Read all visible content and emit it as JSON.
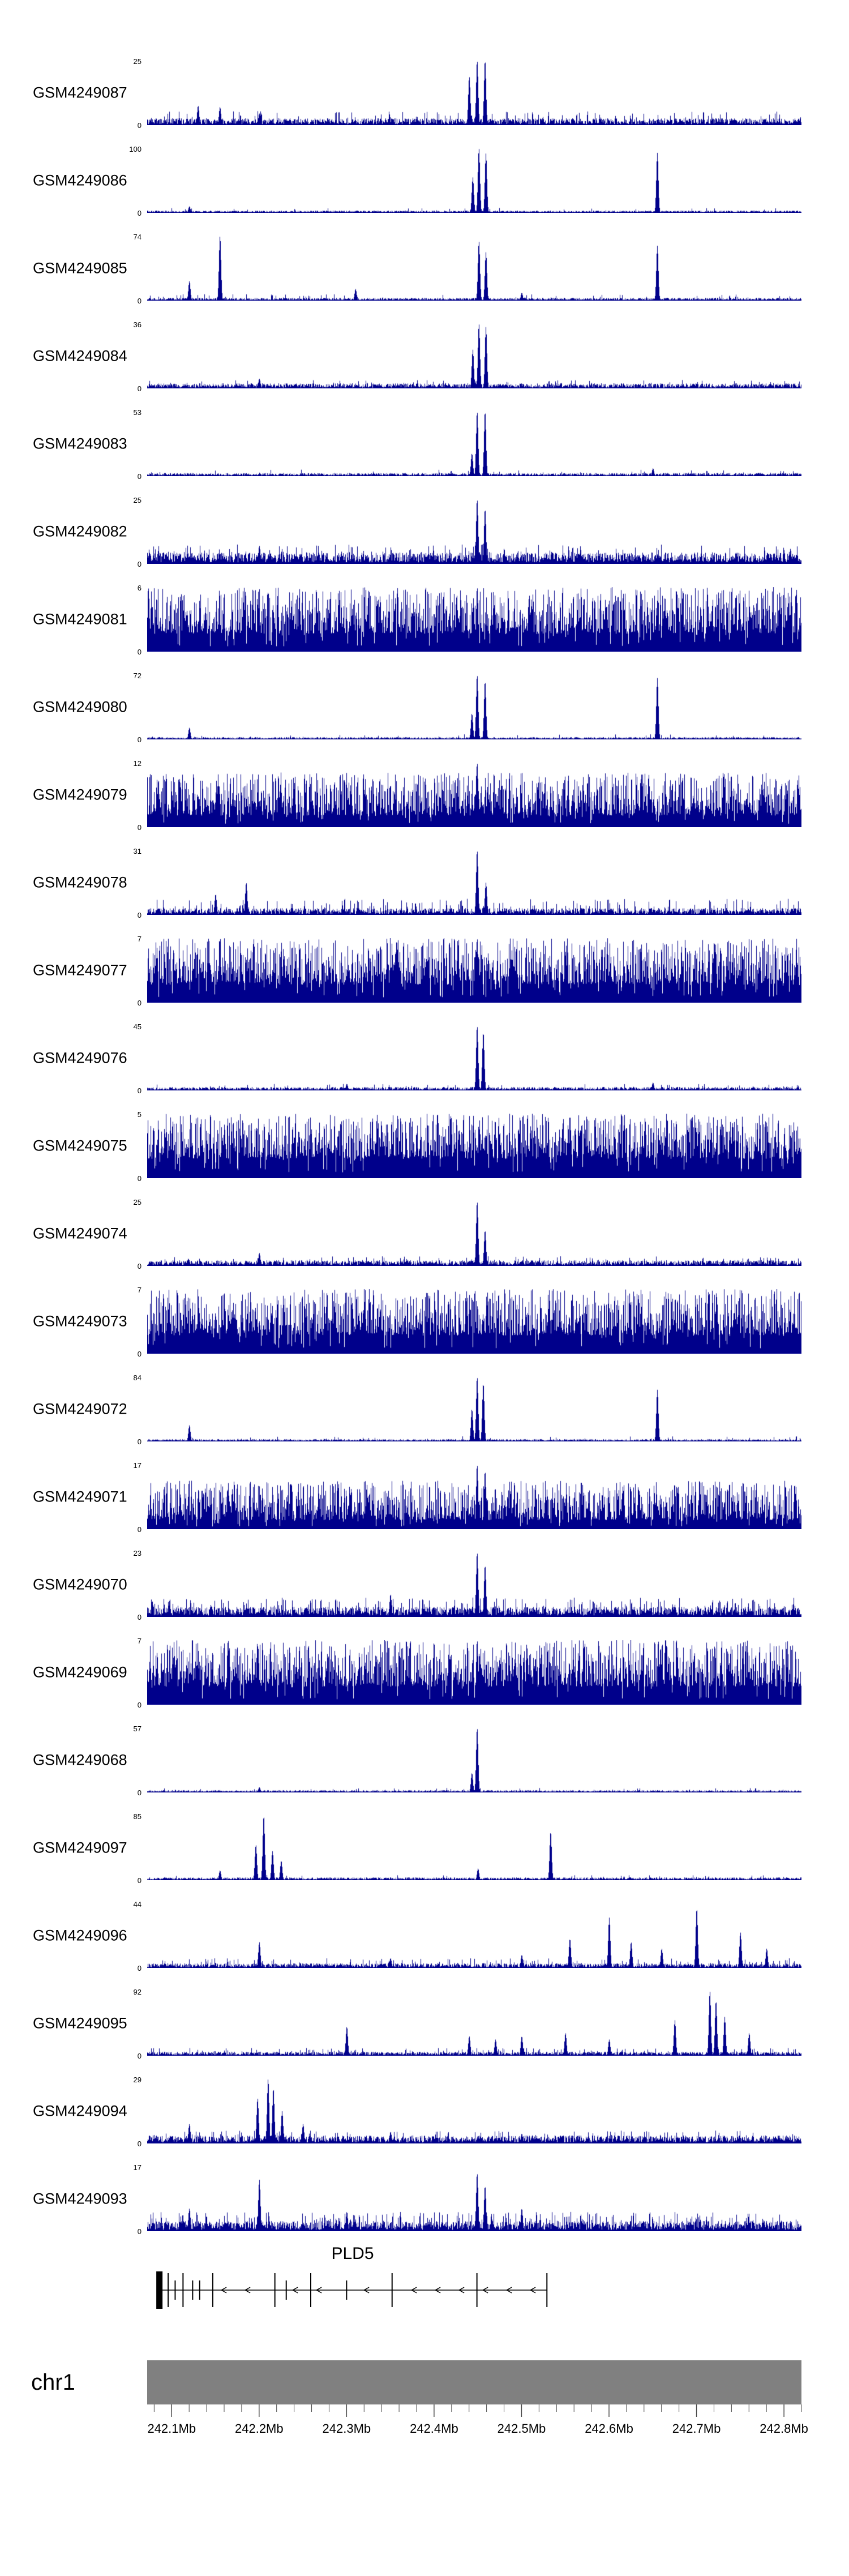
{
  "chart_data": {
    "type": "genome-tracks",
    "region": {
      "chrom": "chr1",
      "start_mb": 242.072,
      "end_mb": 242.82
    },
    "axis": {
      "tick_labels": [
        "242.1Mb",
        "242.2Mb",
        "242.3Mb",
        "242.4Mb",
        "242.5Mb",
        "242.6Mb",
        "242.7Mb",
        "242.8Mb"
      ],
      "tick_positions_mb": [
        242.1,
        242.2,
        242.3,
        242.4,
        242.5,
        242.6,
        242.7,
        242.8
      ],
      "minor_tick_step_mb": 0.02
    },
    "signal_color": "#00008B",
    "y_min_label": "0",
    "tracks": [
      {
        "label": "GSM4249087",
        "ymax": "25",
        "profile": {
          "base": 0.06,
          "spike_p": 0.1,
          "spike_h": 0.22,
          "peaks": [
            [
              242.44,
              0.75
            ],
            [
              242.449,
              1.0
            ],
            [
              242.458,
              1.0
            ],
            [
              242.13,
              0.3
            ],
            [
              242.155,
              0.28
            ],
            [
              242.2,
              0.18
            ]
          ]
        }
      },
      {
        "label": "GSM4249086",
        "ymax": "100",
        "profile": {
          "base": 0.02,
          "spike_p": 0.03,
          "spike_h": 0.08,
          "peaks": [
            [
              242.444,
              0.55
            ],
            [
              242.451,
              1.0
            ],
            [
              242.459,
              0.92
            ],
            [
              242.655,
              0.93
            ],
            [
              242.12,
              0.1
            ]
          ]
        }
      },
      {
        "label": "GSM4249085",
        "ymax": "74",
        "profile": {
          "base": 0.025,
          "spike_p": 0.05,
          "spike_h": 0.1,
          "peaks": [
            [
              242.155,
              1.0
            ],
            [
              242.12,
              0.3
            ],
            [
              242.451,
              0.92
            ],
            [
              242.459,
              0.75
            ],
            [
              242.655,
              0.85
            ],
            [
              242.31,
              0.18
            ],
            [
              242.5,
              0.12
            ]
          ]
        }
      },
      {
        "label": "GSM4249084",
        "ymax": "36",
        "profile": {
          "base": 0.045,
          "spike_p": 0.08,
          "spike_h": 0.13,
          "peaks": [
            [
              242.444,
              0.6
            ],
            [
              242.451,
              1.0
            ],
            [
              242.459,
              0.95
            ],
            [
              242.2,
              0.15
            ]
          ]
        }
      },
      {
        "label": "GSM4249083",
        "ymax": "53",
        "profile": {
          "base": 0.028,
          "spike_p": 0.04,
          "spike_h": 0.1,
          "peaks": [
            [
              242.449,
              1.0
            ],
            [
              242.458,
              1.0
            ],
            [
              242.443,
              0.35
            ],
            [
              242.65,
              0.12
            ]
          ]
        }
      },
      {
        "label": "GSM4249082",
        "ymax": "25",
        "profile": {
          "base": 0.1,
          "spike_p": 0.15,
          "spike_h": 0.3,
          "peaks": [
            [
              242.449,
              1.0
            ],
            [
              242.458,
              0.85
            ],
            [
              242.2,
              0.28
            ]
          ]
        }
      },
      {
        "label": "GSM4249081",
        "ymax": "6",
        "profile": {
          "dense": true,
          "base": 0.28,
          "spike_h": 1.0,
          "peaks": [
            [
              242.449,
              1.0
            ]
          ]
        }
      },
      {
        "label": "GSM4249080",
        "ymax": "72",
        "profile": {
          "base": 0.02,
          "spike_p": 0.04,
          "spike_h": 0.08,
          "peaks": [
            [
              242.449,
              1.0
            ],
            [
              242.458,
              0.9
            ],
            [
              242.443,
              0.4
            ],
            [
              242.655,
              0.95
            ],
            [
              242.12,
              0.18
            ]
          ]
        }
      },
      {
        "label": "GSM4249079",
        "ymax": "12",
        "profile": {
          "dense": true,
          "base": 0.18,
          "spike_h": 0.85,
          "peaks": [
            [
              242.449,
              1.0
            ]
          ]
        }
      },
      {
        "label": "GSM4249078",
        "ymax": "31",
        "profile": {
          "base": 0.06,
          "spike_p": 0.12,
          "spike_h": 0.25,
          "peaks": [
            [
              242.449,
              1.0
            ],
            [
              242.459,
              0.5
            ],
            [
              242.185,
              0.5
            ],
            [
              242.15,
              0.32
            ]
          ]
        }
      },
      {
        "label": "GSM4249077",
        "ymax": "7",
        "profile": {
          "dense": true,
          "base": 0.28,
          "spike_h": 1.0,
          "peaks": [
            [
              242.449,
              1.0
            ],
            [
              242.72,
              0.95
            ]
          ]
        }
      },
      {
        "label": "GSM4249076",
        "ymax": "45",
        "profile": {
          "base": 0.03,
          "spike_p": 0.05,
          "spike_h": 0.1,
          "peaks": [
            [
              242.449,
              1.0
            ],
            [
              242.456,
              0.9
            ],
            [
              242.3,
              0.1
            ],
            [
              242.65,
              0.12
            ]
          ]
        }
      },
      {
        "label": "GSM4249075",
        "ymax": "5",
        "profile": {
          "dense": true,
          "base": 0.3,
          "spike_h": 1.0,
          "peaks": []
        }
      },
      {
        "label": "GSM4249074",
        "ymax": "25",
        "profile": {
          "base": 0.05,
          "spike_p": 0.08,
          "spike_h": 0.15,
          "peaks": [
            [
              242.449,
              1.0
            ],
            [
              242.458,
              0.55
            ],
            [
              242.2,
              0.2
            ]
          ]
        }
      },
      {
        "label": "GSM4249073",
        "ymax": "7",
        "profile": {
          "dense": true,
          "base": 0.28,
          "spike_h": 1.0,
          "peaks": []
        }
      },
      {
        "label": "GSM4249072",
        "ymax": "84",
        "profile": {
          "base": 0.02,
          "spike_p": 0.04,
          "spike_h": 0.08,
          "peaks": [
            [
              242.449,
              1.0
            ],
            [
              242.456,
              0.9
            ],
            [
              242.443,
              0.5
            ],
            [
              242.655,
              0.8
            ],
            [
              242.12,
              0.25
            ]
          ]
        }
      },
      {
        "label": "GSM4249071",
        "ymax": "17",
        "profile": {
          "dense": true,
          "base": 0.14,
          "spike_h": 0.75,
          "peaks": [
            [
              242.449,
              1.0
            ],
            [
              242.458,
              0.9
            ]
          ]
        }
      },
      {
        "label": "GSM4249070",
        "ymax": "23",
        "profile": {
          "base": 0.09,
          "spike_p": 0.2,
          "spike_h": 0.3,
          "peaks": [
            [
              242.449,
              1.0
            ],
            [
              242.458,
              0.8
            ],
            [
              242.35,
              0.35
            ]
          ]
        }
      },
      {
        "label": "GSM4249069",
        "ymax": "7",
        "profile": {
          "dense": true,
          "base": 0.28,
          "spike_h": 1.0,
          "peaks": [
            [
              242.449,
              1.0
            ]
          ]
        }
      },
      {
        "label": "GSM4249068",
        "ymax": "57",
        "profile": {
          "base": 0.02,
          "spike_p": 0.03,
          "spike_h": 0.07,
          "peaks": [
            [
              242.449,
              1.0
            ],
            [
              242.443,
              0.3
            ],
            [
              242.2,
              0.08
            ]
          ]
        }
      },
      {
        "label": "GSM4249097",
        "ymax": "85",
        "profile": {
          "base": 0.025,
          "spike_p": 0.05,
          "spike_h": 0.08,
          "peaks": [
            [
              242.205,
              1.0
            ],
            [
              242.196,
              0.55
            ],
            [
              242.215,
              0.45
            ],
            [
              242.225,
              0.3
            ],
            [
              242.533,
              0.75
            ],
            [
              242.45,
              0.18
            ],
            [
              242.155,
              0.15
            ]
          ]
        }
      },
      {
        "label": "GSM4249096",
        "ymax": "44",
        "profile": {
          "base": 0.04,
          "spike_p": 0.12,
          "spike_h": 0.15,
          "peaks": [
            [
              242.2,
              0.4
            ],
            [
              242.35,
              0.15
            ],
            [
              242.5,
              0.2
            ],
            [
              242.555,
              0.45
            ],
            [
              242.6,
              0.78
            ],
            [
              242.625,
              0.4
            ],
            [
              242.66,
              0.3
            ],
            [
              242.7,
              0.92
            ],
            [
              242.75,
              0.55
            ],
            [
              242.78,
              0.3
            ]
          ]
        }
      },
      {
        "label": "GSM4249095",
        "ymax": "92",
        "profile": {
          "base": 0.035,
          "spike_p": 0.1,
          "spike_h": 0.12,
          "peaks": [
            [
              242.3,
              0.45
            ],
            [
              242.44,
              0.3
            ],
            [
              242.47,
              0.25
            ],
            [
              242.5,
              0.3
            ],
            [
              242.55,
              0.35
            ],
            [
              242.6,
              0.25
            ],
            [
              242.675,
              0.55
            ],
            [
              242.715,
              1.0
            ],
            [
              242.722,
              0.85
            ],
            [
              242.732,
              0.6
            ],
            [
              242.76,
              0.35
            ]
          ]
        }
      },
      {
        "label": "GSM4249094",
        "ymax": "29",
        "profile": {
          "base": 0.07,
          "spike_p": 0.15,
          "spike_h": 0.2,
          "peaks": [
            [
              242.198,
              0.7
            ],
            [
              242.21,
              1.0
            ],
            [
              242.216,
              0.85
            ],
            [
              242.226,
              0.5
            ],
            [
              242.25,
              0.3
            ],
            [
              242.12,
              0.3
            ],
            [
              242.35,
              0.18
            ],
            [
              242.5,
              0.15
            ]
          ]
        }
      },
      {
        "label": "GSM4249093",
        "ymax": "17",
        "profile": {
          "base": 0.09,
          "spike_p": 0.2,
          "spike_h": 0.3,
          "peaks": [
            [
              242.2,
              0.8
            ],
            [
              242.449,
              0.9
            ],
            [
              242.458,
              0.7
            ],
            [
              242.3,
              0.3
            ],
            [
              242.12,
              0.35
            ],
            [
              242.5,
              0.35
            ]
          ]
        }
      }
    ],
    "gene_track": {
      "gene": "PLD5",
      "strand": "-",
      "start_mb": 242.086,
      "end_mb": 242.529,
      "first_exon": {
        "pos_mb": 242.086
      },
      "exons": [
        {
          "pos_mb": 242.096,
          "tall": true
        },
        {
          "pos_mb": 242.104,
          "tall": false
        },
        {
          "pos_mb": 242.113,
          "tall": true
        },
        {
          "pos_mb": 242.124,
          "tall": false
        },
        {
          "pos_mb": 242.132,
          "tall": false
        },
        {
          "pos_mb": 242.147,
          "tall": true
        },
        {
          "pos_mb": 242.218,
          "tall": true
        },
        {
          "pos_mb": 242.231,
          "tall": false
        },
        {
          "pos_mb": 242.259,
          "tall": true
        },
        {
          "pos_mb": 242.3,
          "tall": false
        },
        {
          "pos_mb": 242.352,
          "tall": true
        },
        {
          "pos_mb": 242.449,
          "tall": true
        },
        {
          "pos_mb": 242.529,
          "tall": true
        }
      ]
    },
    "ideogram": {
      "chrom": "chr1",
      "color": "#808080"
    },
    "tick_color": "#444444"
  }
}
